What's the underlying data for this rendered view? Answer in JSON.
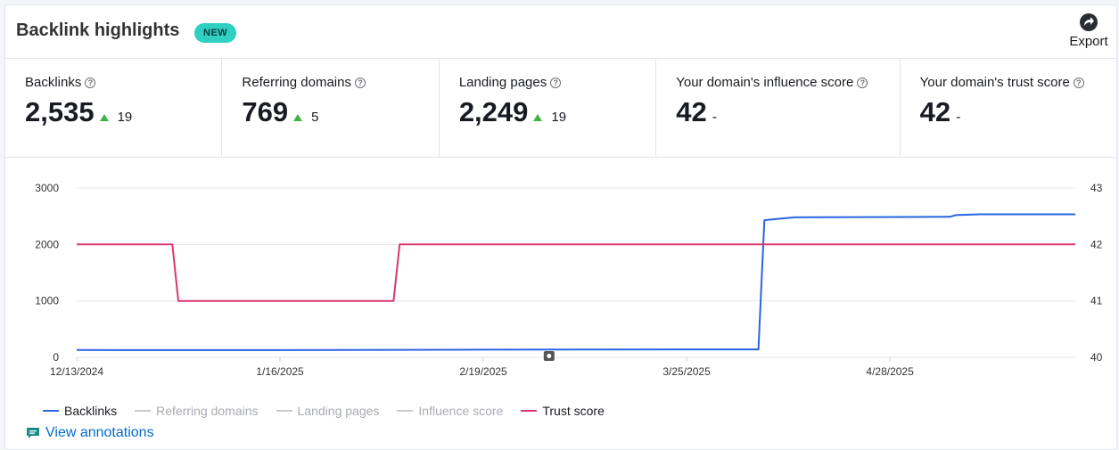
{
  "header": {
    "title": "Backlink highlights",
    "badge": "NEW",
    "export_label": "Export"
  },
  "metrics": [
    {
      "label": "Backlinks",
      "value": "2,535",
      "trend": "up",
      "delta": "19"
    },
    {
      "label": "Referring domains",
      "value": "769",
      "trend": "up",
      "delta": "5"
    },
    {
      "label": "Landing pages",
      "value": "2,249",
      "trend": "up",
      "delta": "19"
    },
    {
      "label": "Your domain's influence score",
      "value": "42",
      "trend": "none",
      "delta": "-"
    },
    {
      "label": "Your domain's trust score",
      "value": "42",
      "trend": "none",
      "delta": "-"
    }
  ],
  "legend": [
    {
      "label": "Backlinks",
      "color": "#2a64e0",
      "active": true
    },
    {
      "label": "Referring domains",
      "color": "#c8cad3",
      "active": false
    },
    {
      "label": "Landing pages",
      "color": "#c8cad3",
      "active": false
    },
    {
      "label": "Influence score",
      "color": "#c8cad3",
      "active": false
    },
    {
      "label": "Trust score",
      "color": "#d9376e",
      "active": true
    }
  ],
  "annotations_link": "View annotations",
  "chart_data": {
    "type": "line",
    "x_ticks": [
      "12/13/2024",
      "1/16/2025",
      "2/19/2025",
      "3/25/2025",
      "4/28/2025"
    ],
    "x_range": [
      "12/13/2024",
      "5/29/2025"
    ],
    "y_left": {
      "ticks": [
        0,
        1000,
        2000,
        3000
      ],
      "ylim": [
        0,
        3000
      ]
    },
    "y_right": {
      "ticks": [
        40,
        41,
        42,
        43
      ],
      "ylim": [
        40,
        43
      ]
    },
    "grid": true,
    "series": [
      {
        "name": "Backlinks",
        "axis": "left",
        "color": "#2a64e0",
        "points": [
          [
            "12/13/2024",
            130
          ],
          [
            "1/16/2025",
            128
          ],
          [
            "2/19/2025",
            135
          ],
          [
            "3/25/2025",
            140
          ],
          [
            "4/6/2025",
            140
          ],
          [
            "4/7/2025",
            2430
          ],
          [
            "4/9/2025",
            2450
          ],
          [
            "4/12/2025",
            2480
          ],
          [
            "5/8/2025",
            2490
          ],
          [
            "5/9/2025",
            2520
          ],
          [
            "5/13/2025",
            2535
          ],
          [
            "5/29/2025",
            2535
          ]
        ]
      },
      {
        "name": "Trust score",
        "axis": "right",
        "color": "#d9376e",
        "points": [
          [
            "12/13/2024",
            42
          ],
          [
            "12/29/2024",
            42
          ],
          [
            "12/30/2024",
            41
          ],
          [
            "2/4/2025",
            41
          ],
          [
            "2/5/2025",
            42
          ],
          [
            "5/29/2025",
            42
          ]
        ]
      }
    ],
    "annotation_marker_date": "3/2/2025"
  }
}
